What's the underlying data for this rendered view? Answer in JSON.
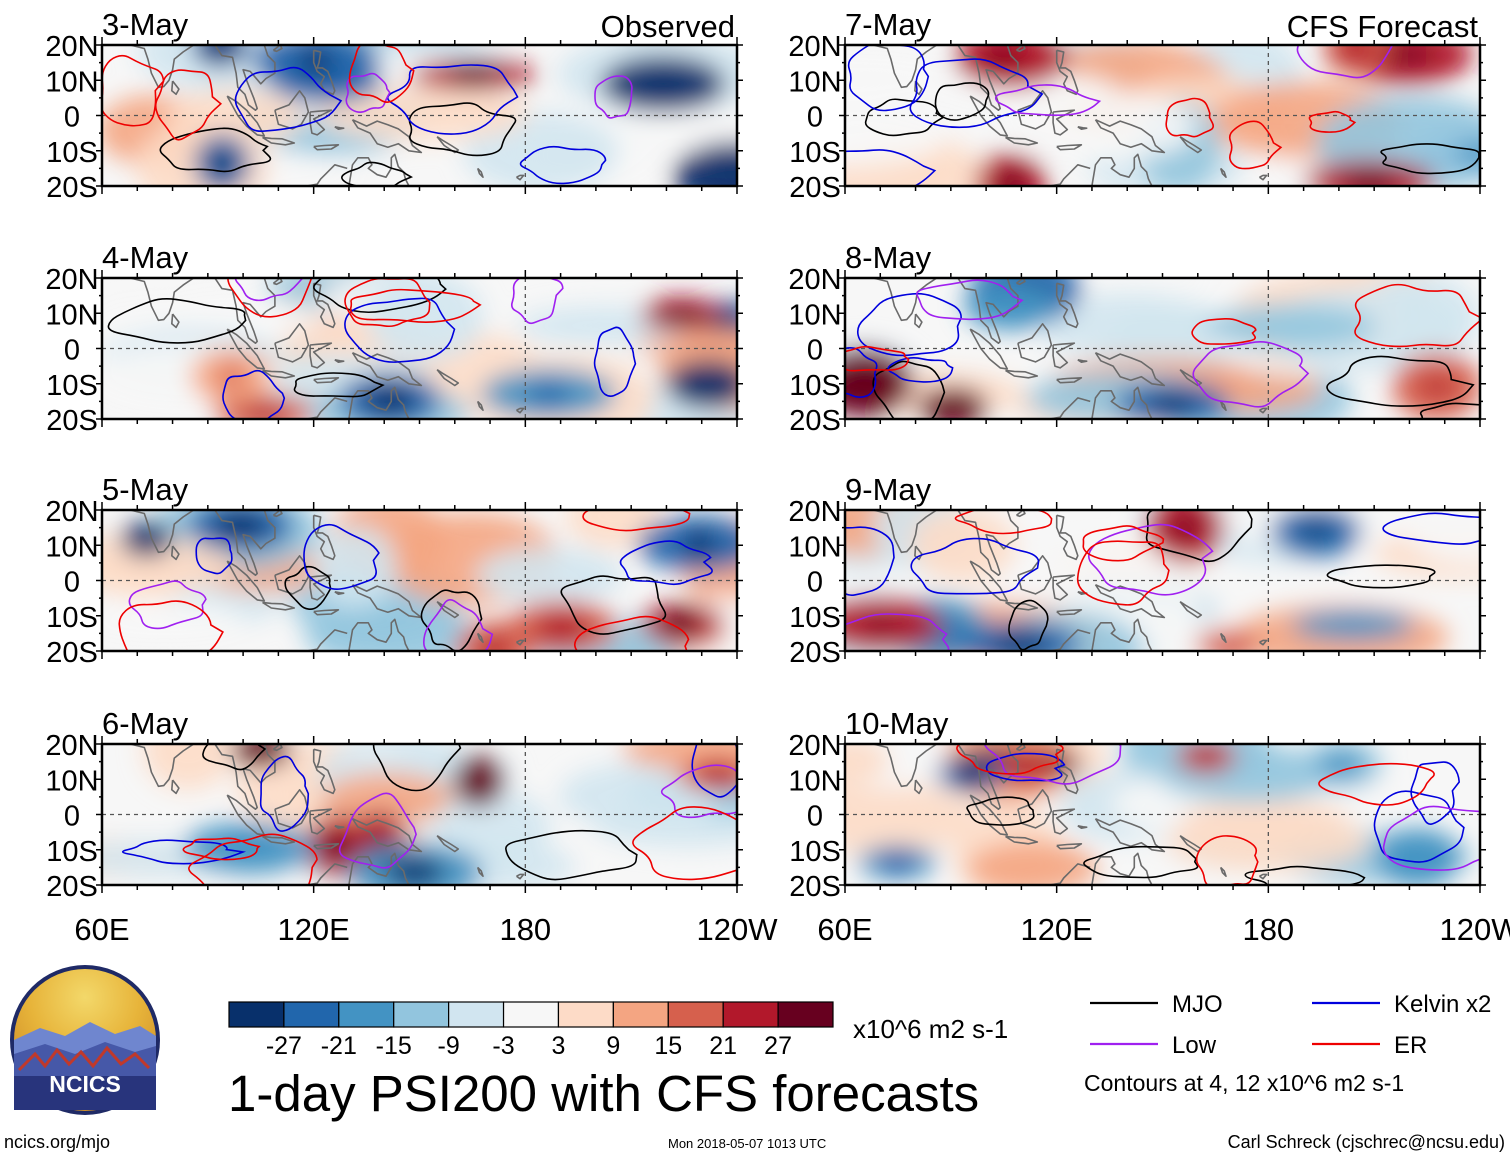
{
  "chart_data": {
    "type": "heatmap",
    "title": "1-day PSI200 with CFS forecasts",
    "variable": "PSI200",
    "units": "x10^6 m2 s-1",
    "x_ticks": [
      "60E",
      "120E",
      "180",
      "120W"
    ],
    "y_ticks": [
      "20N",
      "10N",
      "0",
      "10S",
      "20S"
    ],
    "xlim_deg_east": [
      60,
      240
    ],
    "ylim_deg": [
      -20,
      20
    ],
    "columns": [
      {
        "label": "Observed",
        "dates": [
          "3-May",
          "4-May",
          "5-May",
          "6-May"
        ]
      },
      {
        "label": "CFS Forecast",
        "dates": [
          "7-May",
          "8-May",
          "9-May",
          "10-May"
        ]
      }
    ],
    "colorbar": {
      "ticks": [
        "-27",
        "-21",
        "-15",
        "-9",
        "-3",
        "3",
        "9",
        "15",
        "21",
        "27"
      ],
      "colors": [
        "#08306b",
        "#2166ac",
        "#4393c3",
        "#92c5de",
        "#d1e5f0",
        "#f7f7f7",
        "#fddbc7",
        "#f4a582",
        "#d6604d",
        "#b2182b",
        "#67001f"
      ]
    },
    "contour_legend": [
      {
        "name": "MJO",
        "color": "#000000"
      },
      {
        "name": "Kelvin x2",
        "color": "#0000dd"
      },
      {
        "name": "Low",
        "color": "#a020f0"
      },
      {
        "name": "ER",
        "color": "#ee0000"
      }
    ],
    "contour_levels_note": "Contours at 4, 12 x10^6 m2 s-1"
  },
  "footer": {
    "logo_text": "NCICS",
    "website": "ncics.org/mjo",
    "timestamp": "Mon 2018-05-07 1013 UTC",
    "author": "Carl Schreck (cjschrec@ncsu.edu)"
  }
}
